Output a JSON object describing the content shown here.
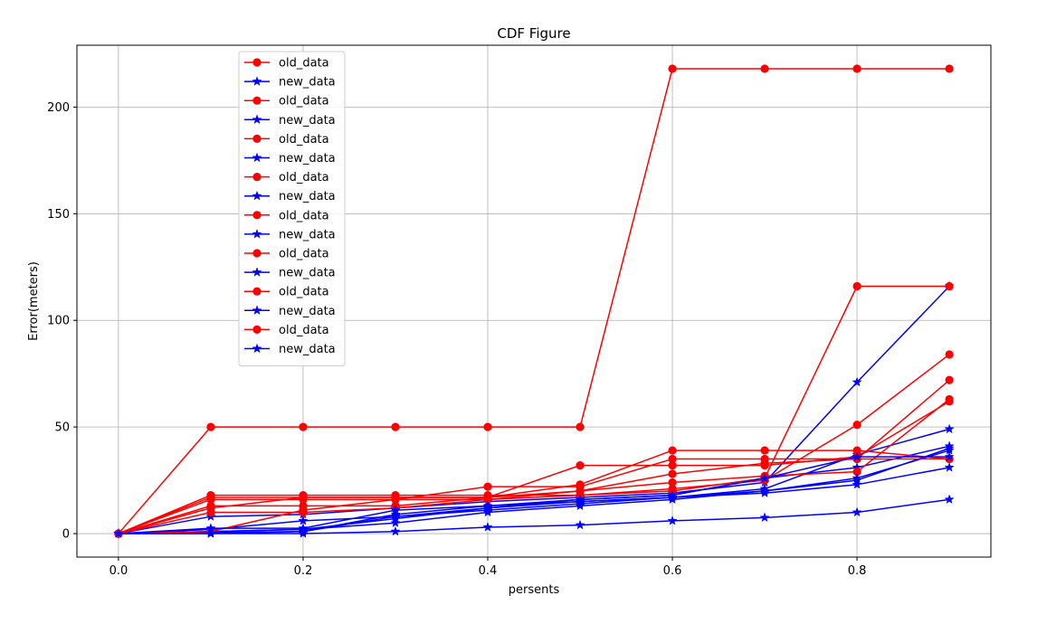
{
  "chart_data": {
    "type": "line",
    "title": "CDF Figure",
    "xlabel": "persents",
    "ylabel": "Error(meters)",
    "xlim": [
      -0.045,
      0.945
    ],
    "ylim": [
      -11,
      229
    ],
    "xticks": [
      0.0,
      0.2,
      0.4,
      0.6,
      0.8
    ],
    "xtick_labels": [
      "0.0",
      "0.2",
      "0.4",
      "0.6",
      "0.8"
    ],
    "yticks": [
      0,
      50,
      100,
      150,
      200
    ],
    "ytick_labels": [
      "0",
      "50",
      "100",
      "150",
      "200"
    ],
    "grid": true,
    "legend_position": "upper-left",
    "x": [
      0.0,
      0.1,
      0.2,
      0.3,
      0.4,
      0.5,
      0.6,
      0.7,
      0.8,
      0.9
    ],
    "series": [
      {
        "name": "old_data",
        "color": "#ff0000",
        "marker": "circle",
        "values": [
          0,
          50,
          50,
          50,
          50,
          50,
          218,
          218,
          218,
          218
        ]
      },
      {
        "name": "new_data",
        "color": "#0000ff",
        "marker": "star",
        "values": [
          0,
          8,
          9,
          12,
          15,
          17,
          19,
          24,
          71,
          116
        ]
      },
      {
        "name": "old_data",
        "color": "#ff0000",
        "marker": "circle",
        "values": [
          0,
          18,
          18,
          18,
          18,
          18,
          20,
          26,
          116,
          116
        ]
      },
      {
        "name": "new_data",
        "color": "#0000ff",
        "marker": "star",
        "values": [
          0,
          2,
          6,
          8,
          11,
          14,
          17,
          21,
          37,
          49
        ]
      },
      {
        "name": "old_data",
        "color": "#ff0000",
        "marker": "circle",
        "values": [
          0,
          16,
          16,
          16,
          16,
          18,
          21,
          25,
          51,
          84
        ]
      },
      {
        "name": "new_data",
        "color": "#0000ff",
        "marker": "star",
        "values": [
          0,
          1,
          2,
          7,
          12,
          16,
          18,
          26,
          31,
          41
        ]
      },
      {
        "name": "old_data",
        "color": "#ff0000",
        "marker": "circle",
        "values": [
          0,
          10,
          10,
          12,
          16,
          20,
          28,
          33,
          35,
          72
        ]
      },
      {
        "name": "new_data",
        "color": "#0000ff",
        "marker": "star",
        "values": [
          0,
          1,
          2,
          5,
          10,
          13,
          16,
          20,
          25,
          40
        ]
      },
      {
        "name": "old_data",
        "color": "#ff0000",
        "marker": "circle",
        "values": [
          0,
          13,
          13,
          13,
          17,
          20,
          24,
          27,
          29,
          63
        ]
      },
      {
        "name": "new_data",
        "color": "#0000ff",
        "marker": "star",
        "values": [
          0,
          0.5,
          1,
          9,
          13,
          15,
          17,
          20,
          26,
          39
        ]
      },
      {
        "name": "old_data",
        "color": "#ff0000",
        "marker": "circle",
        "values": [
          0,
          12,
          17,
          17,
          17,
          32,
          32,
          32,
          36,
          62
        ]
      },
      {
        "name": "new_data",
        "color": "#0000ff",
        "marker": "star",
        "values": [
          0,
          0,
          1,
          8,
          12,
          15,
          17,
          19,
          23,
          31
        ]
      },
      {
        "name": "old_data",
        "color": "#ff0000",
        "marker": "circle",
        "values": [
          0,
          1,
          11,
          16,
          22,
          22,
          35,
          35,
          35,
          35
        ]
      },
      {
        "name": "new_data",
        "color": "#0000ff",
        "marker": "star",
        "values": [
          0,
          0,
          0,
          1,
          3,
          4,
          6,
          7.5,
          10,
          16
        ]
      },
      {
        "name": "old_data",
        "color": "#ff0000",
        "marker": "circle",
        "values": [
          0,
          17,
          17,
          17,
          17,
          23,
          39,
          39,
          39,
          35
        ]
      },
      {
        "name": "new_data",
        "color": "#0000ff",
        "marker": "star",
        "values": [
          0,
          2.5,
          2.5,
          11,
          13,
          16,
          18,
          26,
          36,
          36
        ]
      }
    ]
  }
}
